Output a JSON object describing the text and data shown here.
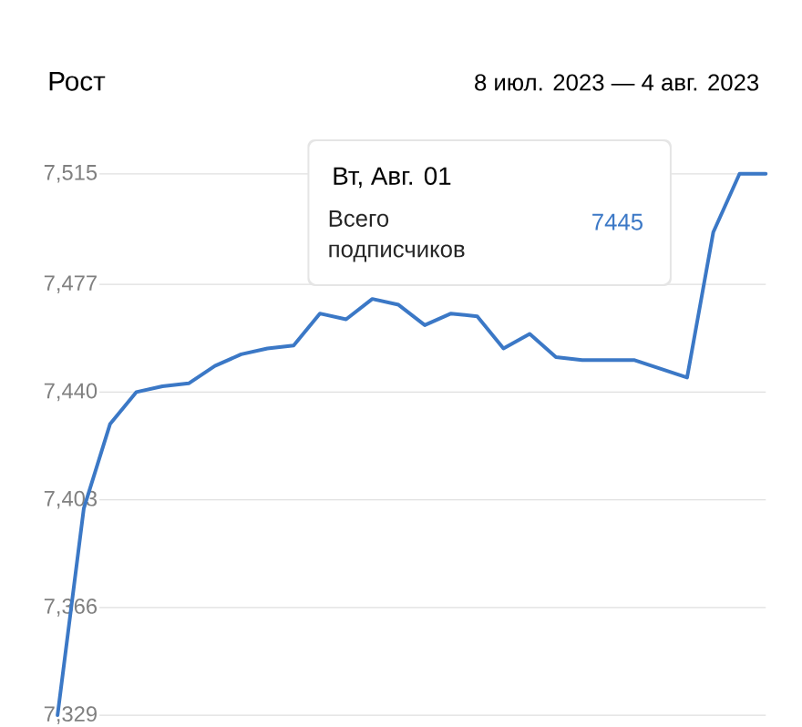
{
  "chart_data": {
    "type": "line",
    "title": "Рост",
    "subtitle": "8 июл. 2023 — 4 авг. 2023",
    "categories": [
      null,
      null,
      null,
      null,
      null,
      null,
      null,
      null,
      null,
      null,
      null,
      null,
      null,
      null,
      null,
      null,
      null,
      null,
      null,
      null,
      null,
      null,
      null,
      null,
      null,
      null,
      null,
      null
    ],
    "series": [
      {
        "color": "#3b78c6",
        "values": [
          7329,
          7400,
          7429,
          7440,
          7442,
          7443,
          7449,
          7453,
          7455,
          7456,
          7467,
          7465,
          7472,
          7470,
          7463,
          7467,
          7466,
          7455,
          7460,
          7452,
          7451,
          7451,
          7451,
          7448,
          7445,
          7495,
          7515,
          7515
        ]
      }
    ],
    "ylim": [
      7329,
      7515
    ],
    "yticks": [
      {
        "value": 7329,
        "label": "7,329"
      },
      {
        "value": 7366,
        "label": "7,366"
      },
      {
        "value": 7403,
        "label": "7,403"
      },
      {
        "value": 7440,
        "label": "7,440"
      },
      {
        "value": 7477,
        "label": "7,477"
      },
      {
        "value": 7515,
        "label": "7,515"
      }
    ],
    "tick_labels": "y",
    "grid": "y",
    "marker": "none",
    "line_style": "solid",
    "annotations": [
      "Вт, Авг. 01",
      "Всего подписчиков",
      "7445"
    ]
  }
}
